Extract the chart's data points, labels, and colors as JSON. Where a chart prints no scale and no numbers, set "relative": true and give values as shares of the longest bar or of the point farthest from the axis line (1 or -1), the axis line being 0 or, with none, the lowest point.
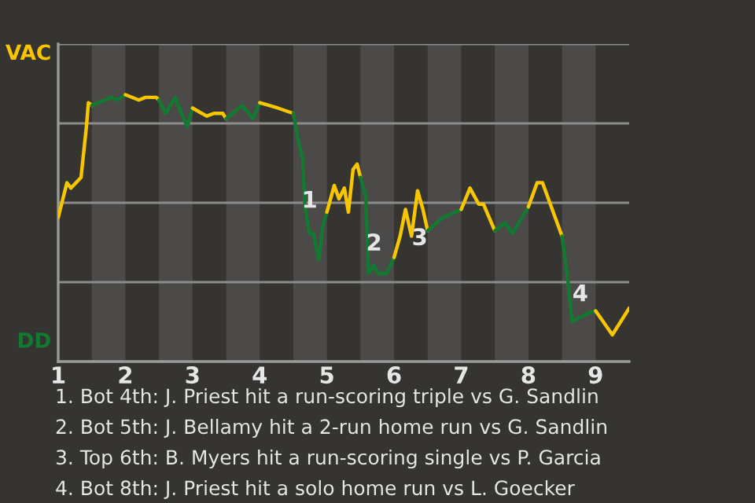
{
  "chart_data": {
    "type": "line",
    "relative": true,
    "series": [
      {
        "name": "VAC",
        "color": "#f7c600",
        "x": [
          1.0,
          1.13,
          1.19,
          1.34,
          1.42,
          1.45,
          1.5
        ],
        "values": [
          0.54,
          0.67,
          0.65,
          0.69,
          0.88,
          0.97,
          0.96
        ]
      },
      {
        "name": "DD",
        "color": "#127a30",
        "x": [
          1.5,
          1.79,
          1.88,
          2.0
        ],
        "values": [
          0.96,
          0.99,
          0.98,
          1.0
        ]
      },
      {
        "color": "#f7c600",
        "x": [
          2.0,
          2.2,
          2.3,
          2.46,
          2.5
        ],
        "values": [
          1.0,
          0.98,
          0.99,
          0.99,
          0.98
        ]
      },
      {
        "color": "#127a30",
        "x": [
          2.5,
          2.6,
          2.74,
          2.82,
          2.92,
          3.0
        ],
        "values": [
          0.98,
          0.93,
          0.99,
          0.94,
          0.88,
          0.95
        ]
      },
      {
        "color": "#f7c600",
        "x": [
          3.0,
          3.21,
          3.32,
          3.45,
          3.5
        ],
        "values": [
          0.95,
          0.92,
          0.93,
          0.93,
          0.91
        ]
      },
      {
        "color": "#127a30",
        "x": [
          3.5,
          3.74,
          3.9,
          4.0
        ],
        "values": [
          0.91,
          0.96,
          0.91,
          0.97
        ]
      },
      {
        "color": "#f7c600",
        "x": [
          4.0,
          4.27,
          4.5
        ],
        "values": [
          0.97,
          0.95,
          0.93
        ]
      },
      {
        "color": "#127a30",
        "x": [
          4.5,
          4.58,
          4.64,
          4.67,
          4.7,
          4.74,
          4.8,
          4.88,
          4.94,
          5.0
        ],
        "values": [
          0.93,
          0.82,
          0.76,
          0.6,
          0.54,
          0.48,
          0.48,
          0.38,
          0.51,
          0.56
        ]
      },
      {
        "color": "#f7c600",
        "x": [
          5.0,
          5.11,
          5.18,
          5.26,
          5.32,
          5.39,
          5.45,
          5.5
        ],
        "values": [
          0.56,
          0.66,
          0.61,
          0.65,
          0.56,
          0.72,
          0.74,
          0.69
        ]
      },
      {
        "color": "#127a30",
        "x": [
          5.5,
          5.58,
          5.59,
          5.62,
          5.7,
          5.76,
          5.89,
          6.0
        ],
        "values": [
          0.69,
          0.62,
          0.54,
          0.33,
          0.36,
          0.33,
          0.33,
          0.39
        ]
      },
      {
        "color": "#f7c600",
        "x": [
          6.0,
          6.09,
          6.17,
          6.26,
          6.35,
          6.43,
          6.5
        ],
        "values": [
          0.39,
          0.47,
          0.57,
          0.47,
          0.64,
          0.57,
          0.49
        ]
      },
      {
        "color": "#127a30",
        "x": [
          6.5,
          6.73,
          7.0
        ],
        "values": [
          0.49,
          0.54,
          0.57
        ]
      },
      {
        "color": "#f7c600",
        "x": [
          7.0,
          7.13,
          7.26,
          7.33,
          7.5
        ],
        "values": [
          0.57,
          0.65,
          0.59,
          0.59,
          0.49
        ]
      },
      {
        "color": "#127a30",
        "x": [
          7.5,
          7.65,
          7.76,
          8.0
        ],
        "values": [
          0.49,
          0.52,
          0.48,
          0.58
        ]
      },
      {
        "color": "#f7c600",
        "x": [
          8.0,
          8.13,
          8.21,
          8.5
        ],
        "values": [
          0.58,
          0.67,
          0.67,
          0.47
        ]
      },
      {
        "color": "#127a30",
        "x": [
          8.5,
          8.59,
          8.65,
          8.88,
          9.0
        ],
        "values": [
          0.47,
          0.3,
          0.15,
          0.18,
          0.19
        ]
      },
      {
        "color": "#f7c600",
        "x": [
          9.0,
          9.25,
          9.5
        ],
        "values": [
          0.19,
          0.1,
          0.2
        ]
      }
    ],
    "xlim": [
      1,
      9.5
    ],
    "xticks": [
      1,
      2,
      3,
      4,
      5,
      6,
      7,
      8,
      9
    ],
    "grid": "y",
    "bands": [
      {
        "axis": "x",
        "from": 1.5,
        "to": 2,
        "color": "#4b4a48"
      },
      {
        "axis": "x",
        "from": 2.5,
        "to": 3,
        "color": "#4b4a48"
      },
      {
        "axis": "x",
        "from": 3.5,
        "to": 4,
        "color": "#4b4a48"
      },
      {
        "axis": "x",
        "from": 4.5,
        "to": 5,
        "color": "#4b4a48"
      },
      {
        "axis": "x",
        "from": 5.5,
        "to": 6,
        "color": "#4b4a48"
      },
      {
        "axis": "x",
        "from": 6.5,
        "to": 7,
        "color": "#4b4a48"
      },
      {
        "axis": "x",
        "from": 7.5,
        "to": 8,
        "color": "#4b4a48"
      },
      {
        "axis": "x",
        "from": 8.5,
        "to": 9,
        "color": "#4b4a48"
      }
    ],
    "annotations": [
      {
        "text": "1",
        "x": 4.58,
        "y": 0.6
      },
      {
        "text": "2",
        "x": 5.54,
        "y": 0.44
      },
      {
        "text": "3",
        "x": 6.22,
        "y": 0.46
      },
      {
        "text": "4",
        "x": 8.61,
        "y": 0.25
      },
      "1. Bot 4th: J. Priest hit a run-scoring triple vs G. Sandlin",
      "2. Bot 5th: J. Bellamy hit a 2-run home run vs G. Sandlin",
      "3. Top 6th: B. Myers hit a run-scoring single vs P. Garcia",
      "4. Bot 8th: J. Priest hit a solo home run vs L. Goecker"
    ]
  }
}
